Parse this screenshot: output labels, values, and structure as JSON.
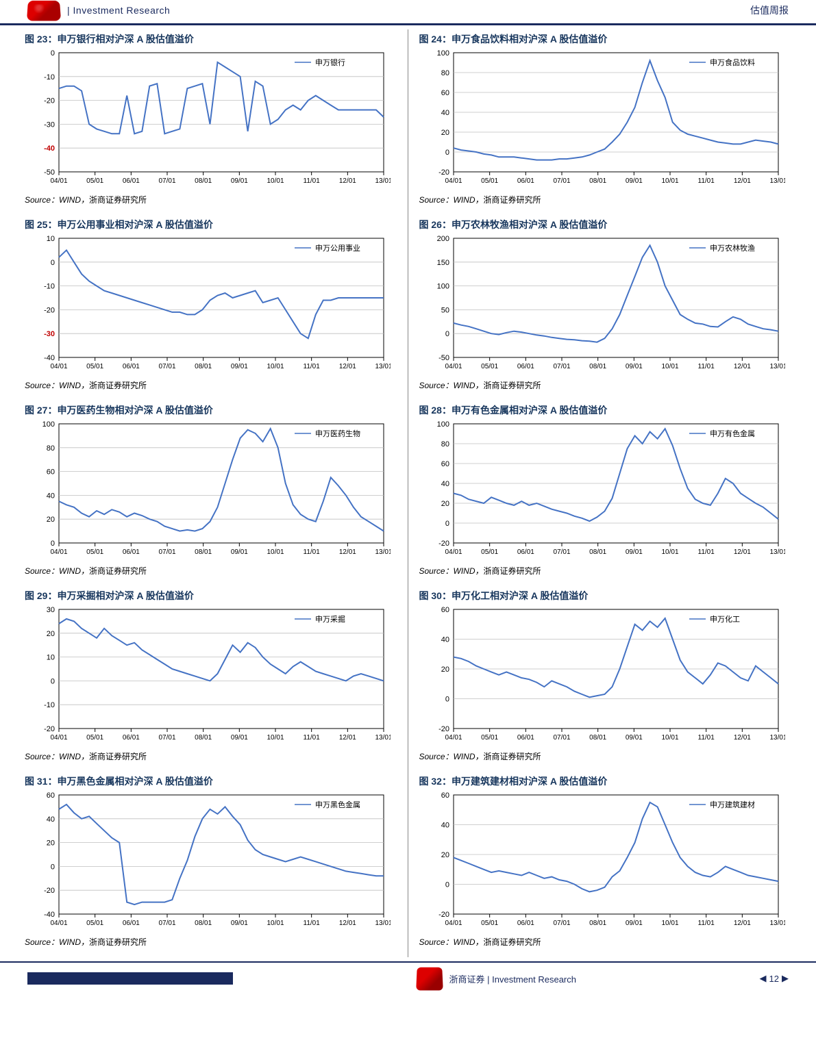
{
  "header": {
    "left_text": "| Investment Research",
    "right_text": "估值周报"
  },
  "footer": {
    "company": "浙商证券 | Investment Research",
    "page": "12"
  },
  "x_ticks": [
    "04/01",
    "05/01",
    "06/01",
    "07/01",
    "08/01",
    "09/01",
    "10/01",
    "11/01",
    "12/01",
    "13/01"
  ],
  "source_label": "Source：",
  "source_eng": "WIND，",
  "source_cn": "浙商证券研究所",
  "line_color": "#4472c4",
  "grid_color": "#bfbfbf",
  "axis_color": "#000000",
  "bg": "#ffffff",
  "charts": [
    {
      "title": "图 23：申万银行相对沪深 A 股估值溢价",
      "legend": "申万银行",
      "ymin": -50,
      "ymax": 0,
      "ystep": 10,
      "red_tick": -40,
      "values": [
        -15,
        -14,
        -14,
        -16,
        -30,
        -32,
        -33,
        -34,
        -34,
        -18,
        -34,
        -33,
        -14,
        -13,
        -34,
        -33,
        -32,
        -15,
        -14,
        -13,
        -30,
        -4,
        -6,
        -8,
        -10,
        -33,
        -12,
        -14,
        -30,
        -28,
        -24,
        -22,
        -24,
        -20,
        -18,
        -20,
        -22,
        -24,
        -24,
        -24,
        -24,
        -24,
        -24,
        -27
      ]
    },
    {
      "title": "图 24：申万食品饮料相对沪深 A 股估值溢价",
      "legend": "申万食品饮料",
      "ymin": -20,
      "ymax": 100,
      "ystep": 20,
      "values": [
        4,
        2,
        1,
        0,
        -2,
        -3,
        -5,
        -5,
        -5,
        -6,
        -7,
        -8,
        -8,
        -8,
        -7,
        -7,
        -6,
        -5,
        -3,
        0,
        3,
        10,
        18,
        30,
        45,
        70,
        92,
        72,
        55,
        30,
        22,
        18,
        16,
        14,
        12,
        10,
        9,
        8,
        8,
        10,
        12,
        11,
        10,
        8
      ]
    },
    {
      "title": "图 25：申万公用事业相对沪深 A 股估值溢价",
      "legend": "申万公用事业",
      "ymin": -40,
      "ymax": 10,
      "ystep": 10,
      "red_tick": -30,
      "values": [
        2,
        5,
        0,
        -5,
        -8,
        -10,
        -12,
        -13,
        -14,
        -15,
        -16,
        -17,
        -18,
        -19,
        -20,
        -21,
        -21,
        -22,
        -22,
        -20,
        -16,
        -14,
        -13,
        -15,
        -14,
        -13,
        -12,
        -17,
        -16,
        -15,
        -20,
        -25,
        -30,
        -32,
        -22,
        -16,
        -16,
        -15,
        -15,
        -15,
        -15,
        -15,
        -15,
        -15
      ]
    },
    {
      "title": "图 26：申万农林牧渔相对沪深 A 股估值溢价",
      "legend": "申万农林牧渔",
      "ymin": -50,
      "ymax": 200,
      "ystep": 50,
      "values": [
        22,
        18,
        15,
        10,
        5,
        0,
        -2,
        2,
        5,
        3,
        0,
        -3,
        -5,
        -8,
        -10,
        -12,
        -13,
        -15,
        -16,
        -18,
        -10,
        10,
        40,
        80,
        120,
        160,
        185,
        150,
        100,
        70,
        40,
        30,
        22,
        20,
        15,
        14,
        25,
        35,
        30,
        20,
        15,
        10,
        8,
        5
      ]
    },
    {
      "title": "图 27：申万医药生物相对沪深 A 股估值溢价",
      "legend": "申万医药生物",
      "ymin": 0,
      "ymax": 100,
      "ystep": 20,
      "values": [
        35,
        32,
        30,
        25,
        22,
        27,
        24,
        28,
        26,
        22,
        25,
        23,
        20,
        18,
        14,
        12,
        10,
        11,
        10,
        12,
        18,
        30,
        50,
        70,
        88,
        95,
        92,
        85,
        96,
        80,
        50,
        32,
        24,
        20,
        18,
        35,
        55,
        48,
        40,
        30,
        22,
        18,
        14,
        10
      ]
    },
    {
      "title": "图 28：申万有色金属相对沪深 A 股估值溢价",
      "legend": "申万有色金属",
      "ymin": -20,
      "ymax": 100,
      "ystep": 20,
      "values": [
        30,
        28,
        24,
        22,
        20,
        26,
        23,
        20,
        18,
        22,
        18,
        20,
        17,
        14,
        12,
        10,
        7,
        5,
        2,
        6,
        12,
        25,
        50,
        75,
        88,
        80,
        92,
        85,
        95,
        78,
        55,
        35,
        24,
        20,
        18,
        30,
        45,
        40,
        30,
        25,
        20,
        16,
        10,
        4
      ]
    },
    {
      "title": "图 29：申万采掘相对沪深 A 股估值溢价",
      "legend": "申万采掘",
      "ymin": -20,
      "ymax": 30,
      "ystep": 10,
      "values": [
        24,
        26,
        25,
        22,
        20,
        18,
        22,
        19,
        17,
        15,
        16,
        13,
        11,
        9,
        7,
        5,
        4,
        3,
        2,
        1,
        0,
        3,
        9,
        15,
        12,
        16,
        14,
        10,
        7,
        5,
        3,
        6,
        8,
        6,
        4,
        3,
        2,
        1,
        0,
        2,
        3,
        2,
        1,
        0
      ]
    },
    {
      "title": "图 30：申万化工相对沪深 A 股估值溢价",
      "legend": "申万化工",
      "ymin": -20,
      "ymax": 60,
      "ystep": 20,
      "values": [
        28,
        27,
        25,
        22,
        20,
        18,
        16,
        18,
        16,
        14,
        13,
        11,
        8,
        12,
        10,
        8,
        5,
        3,
        1,
        2,
        3,
        8,
        20,
        35,
        50,
        46,
        52,
        48,
        54,
        40,
        26,
        18,
        14,
        10,
        16,
        24,
        22,
        18,
        14,
        12,
        22,
        18,
        14,
        10
      ]
    },
    {
      "title": "图 31：申万黑色金属相对沪深 A 股估值溢价",
      "legend": "申万黑色金属",
      "ymin": -40,
      "ymax": 60,
      "ystep": 20,
      "values": [
        48,
        52,
        45,
        40,
        42,
        36,
        30,
        24,
        20,
        -30,
        -32,
        -30,
        -30,
        -30,
        -30,
        -28,
        -10,
        5,
        25,
        40,
        48,
        44,
        50,
        42,
        35,
        22,
        14,
        10,
        8,
        6,
        4,
        6,
        8,
        6,
        4,
        2,
        0,
        -2,
        -4,
        -5,
        -6,
        -7,
        -8,
        -8
      ]
    },
    {
      "title": "图 32：申万建筑建材相对沪深 A 股估值溢价",
      "legend": "申万建筑建材",
      "ymin": -20,
      "ymax": 60,
      "ystep": 20,
      "values": [
        18,
        16,
        14,
        12,
        10,
        8,
        9,
        8,
        7,
        6,
        8,
        6,
        4,
        5,
        3,
        2,
        0,
        -3,
        -5,
        -4,
        -2,
        5,
        9,
        18,
        28,
        44,
        55,
        52,
        40,
        28,
        18,
        12,
        8,
        6,
        5,
        8,
        12,
        10,
        8,
        6,
        5,
        4,
        3,
        2
      ]
    }
  ]
}
